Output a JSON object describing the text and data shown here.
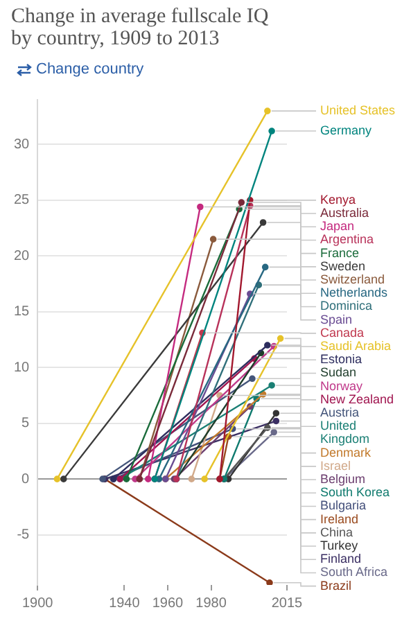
{
  "chart_data": {
    "type": "line",
    "title": "Change in average fullscale IQ by country, 1909 to 2013",
    "annotations": [
      "Change country"
    ],
    "xlim": [
      1900,
      2015
    ],
    "xticks": [
      1900,
      1940,
      1960,
      1980,
      2015
    ],
    "ylim": [
      -9.5,
      34
    ],
    "yticks": [
      -5,
      0,
      5,
      10,
      15,
      20,
      25,
      30
    ],
    "grid": "y",
    "legend": false,
    "marker": "circle",
    "line_style": "solid",
    "series": [
      {
        "name": "United States",
        "color": "#e6c229",
        "x": [
          1909,
          2006
        ],
        "values": [
          0,
          33
        ]
      },
      {
        "name": "Germany",
        "color": "#00847e",
        "x": [
          1954,
          2008
        ],
        "values": [
          0,
          31.2
        ]
      },
      {
        "name": "Kenya",
        "color": "#a2182e",
        "x": [
          1984,
          1998
        ],
        "values": [
          0,
          25
        ]
      },
      {
        "name": "Australia",
        "color": "#7a2a3a",
        "x": [
          1947,
          1994
        ],
        "values": [
          0,
          24.8
        ]
      },
      {
        "name": "Japan",
        "color": "#c42a7f",
        "x": [
          1951,
          1975
        ],
        "values": [
          0,
          24.4
        ]
      },
      {
        "name": "Argentina",
        "color": "#b8325a",
        "x": [
          1964,
          1998
        ],
        "values": [
          0,
          24.5
        ]
      },
      {
        "name": "France",
        "color": "#1a6b3a",
        "x": [
          1941,
          1993
        ],
        "values": [
          0,
          24.2
        ]
      },
      {
        "name": "Sweden",
        "color": "#3a3a3a",
        "x": [
          1912,
          2004
        ],
        "values": [
          0,
          23
        ]
      },
      {
        "name": "Switzerland",
        "color": "#8a5a3c",
        "x": [
          1947,
          1981
        ],
        "values": [
          0,
          21.5
        ]
      },
      {
        "name": "Netherlands",
        "color": "#286882",
        "x": [
          1956,
          2005
        ],
        "values": [
          0,
          19
        ]
      },
      {
        "name": "Dominica",
        "color": "#2f6f7a",
        "x": [
          1964,
          2002
        ],
        "values": [
          0,
          17.4
        ]
      },
      {
        "name": "Spain",
        "color": "#6a4c93",
        "x": [
          1959,
          1998
        ],
        "values": [
          0,
          16.6
        ]
      },
      {
        "name": "Canada",
        "color": "#c0394f",
        "x": [
          1954,
          1976
        ],
        "values": [
          0,
          13.1
        ]
      },
      {
        "name": "Saudi Arabia",
        "color": "#e6c229",
        "x": [
          1977,
          2012
        ],
        "values": [
          0,
          12.6
        ]
      },
      {
        "name": "Estonia",
        "color": "#2d2d5e",
        "x": [
          1935,
          2006
        ],
        "values": [
          0,
          12
        ]
      },
      {
        "name": "Sudan",
        "color": "#1f3d2b",
        "x": [
          1964,
          2003
        ],
        "values": [
          0,
          11.3
        ]
      },
      {
        "name": "Norway",
        "color": "#c0398a",
        "x": [
          1945,
          2009
        ],
        "values": [
          0,
          11.9
        ]
      },
      {
        "name": "New Zealand",
        "color": "#a0144f",
        "x": [
          1938,
          2000
        ],
        "values": [
          0,
          10.8
        ]
      },
      {
        "name": "Austria",
        "color": "#44557a",
        "x": [
          1930,
          1999
        ],
        "values": [
          0,
          9
        ]
      },
      {
        "name": "United Kingdom",
        "color": "#1a7f74",
        "x": [
          1938,
          2008
        ],
        "values": [
          0,
          8.4
        ]
      },
      {
        "name": "Denmark",
        "color": "#c27a2c",
        "x": [
          1959,
          2004
        ],
        "values": [
          0,
          7.6
        ]
      },
      {
        "name": "Israel",
        "color": "#d1a98a",
        "x": [
          1971,
          1984
        ],
        "values": [
          0,
          7.5
        ]
      },
      {
        "name": "Belgium",
        "color": "#6b3d6e",
        "x": [
          1963,
          1998
        ],
        "values": [
          0,
          6.5
        ]
      },
      {
        "name": "South Korea",
        "color": "#0f7a6e",
        "x": [
          1986,
          2001
        ],
        "values": [
          0,
          7.2
        ]
      },
      {
        "name": "Bulgaria",
        "color": "#434f7a",
        "x": [
          1935,
          1990
        ],
        "values": [
          0,
          4.5
        ]
      },
      {
        "name": "Ireland",
        "color": "#9a4b1f",
        "x": [
          1984,
          1988
        ],
        "values": [
          0,
          3.8
        ]
      },
      {
        "name": "China",
        "color": "#555555",
        "x": [
          1986,
          2006
        ],
        "values": [
          0,
          4.6
        ]
      },
      {
        "name": "Turkey",
        "color": "#333333",
        "x": [
          1988,
          2010
        ],
        "values": [
          0,
          5.9
        ]
      },
      {
        "name": "Finland",
        "color": "#3b2f63",
        "x": [
          1931,
          2010
        ],
        "values": [
          0,
          5.2
        ]
      },
      {
        "name": "South Africa",
        "color": "#6a6a8a",
        "x": [
          1986,
          2009
        ],
        "values": [
          0,
          4.2
        ]
      },
      {
        "name": "Brazil",
        "color": "#8b3a1a",
        "x": [
          1931,
          2007
        ],
        "values": [
          0,
          -9.3
        ]
      }
    ]
  }
}
